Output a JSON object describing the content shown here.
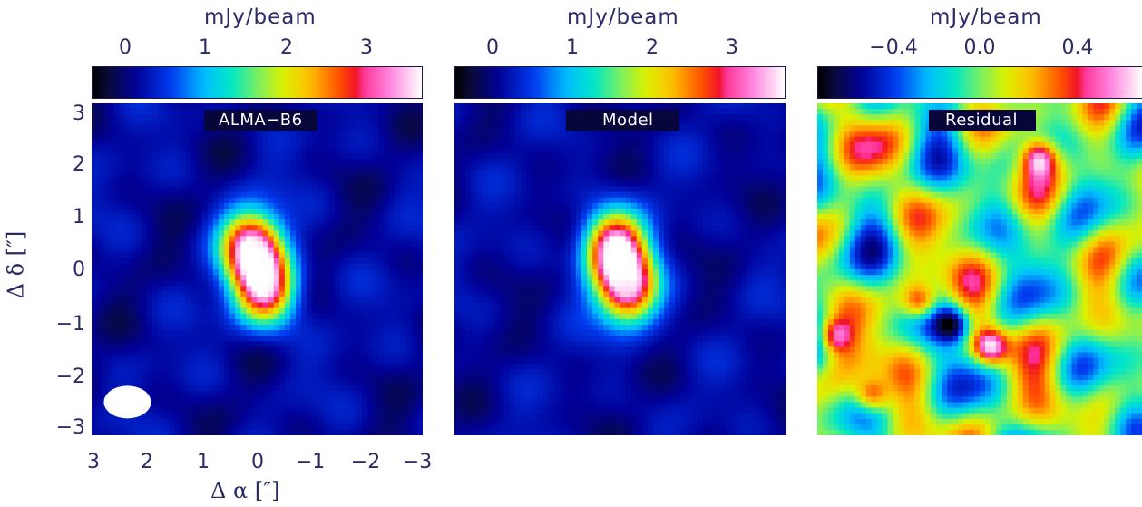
{
  "colorbars": [
    {
      "unit": "mJy/beam",
      "ticks": [
        "0",
        "1",
        "2",
        "3"
      ],
      "range": [
        -0.6,
        3.7
      ]
    },
    {
      "unit": "mJy/beam",
      "ticks": [
        "0",
        "1",
        "2",
        "3"
      ],
      "range": [
        -0.6,
        3.7
      ]
    },
    {
      "unit": "mJy/beam",
      "ticks": [
        "−0.4",
        "0.0",
        "0.4"
      ],
      "range": [
        -0.7,
        0.7
      ]
    }
  ],
  "panels": [
    {
      "label": "ALMA−B6"
    },
    {
      "label": "Model"
    },
    {
      "label": "Residual"
    }
  ],
  "axes": {
    "ylabel": "Δ δ [″]",
    "xlabel": "Δ α [″]",
    "yticks": [
      "3",
      "2",
      "1",
      "0",
      "−1",
      "−2",
      "−3"
    ],
    "xticks": [
      "3",
      "2",
      "1",
      "0",
      "−1",
      "−2",
      "−3"
    ]
  },
  "chart_data": [
    {
      "type": "heatmap",
      "title": "ALMA−B6",
      "colorbar_label": "mJy/beam",
      "colorbar_ticks": [
        0,
        1,
        2,
        3
      ],
      "colorbar_range": [
        -0.6,
        3.7
      ],
      "xlabel": "Δ α [″]",
      "ylabel": "Δ δ [″]",
      "xlim": [
        3,
        -3
      ],
      "ylim": [
        -3,
        3
      ],
      "peak_mJy_per_beam": 3.5,
      "source_components": [
        {
          "x": 0.1,
          "y": 0.4,
          "peak": 3.5
        },
        {
          "x": -0.15,
          "y": -0.35,
          "peak": 3.3
        }
      ],
      "beam": {
        "x": 2.35,
        "y": -2.4
      }
    },
    {
      "type": "heatmap",
      "title": "Model",
      "colorbar_label": "mJy/beam",
      "colorbar_ticks": [
        0,
        1,
        2,
        3
      ],
      "colorbar_range": [
        -0.6,
        3.7
      ],
      "xlim": [
        3,
        -3
      ],
      "ylim": [
        -3,
        3
      ],
      "peak_mJy_per_beam": 3.5,
      "source_components": [
        {
          "x": 0.1,
          "y": 0.4,
          "peak": 3.5
        },
        {
          "x": -0.15,
          "y": -0.35,
          "peak": 3.3
        }
      ]
    },
    {
      "type": "heatmap",
      "title": "Residual",
      "colorbar_label": "mJy/beam",
      "colorbar_ticks": [
        -0.4,
        0.0,
        0.4
      ],
      "colorbar_range": [
        -0.7,
        0.7
      ],
      "xlim": [
        3,
        -3
      ],
      "ylim": [
        -3,
        3
      ],
      "notable_features": [
        {
          "x": -0.2,
          "y": -1.4,
          "value": 0.65
        },
        {
          "x": -1.1,
          "y": 2.0,
          "value": 0.55
        },
        {
          "x": 1.1,
          "y": -0.6,
          "value": 0.5
        },
        {
          "x": 2.7,
          "y": -1.2,
          "value": 0.5
        },
        {
          "x": 2.0,
          "y": -2.3,
          "value": 0.5
        },
        {
          "x": 0.5,
          "y": -1.0,
          "value": -0.55
        }
      ]
    }
  ]
}
